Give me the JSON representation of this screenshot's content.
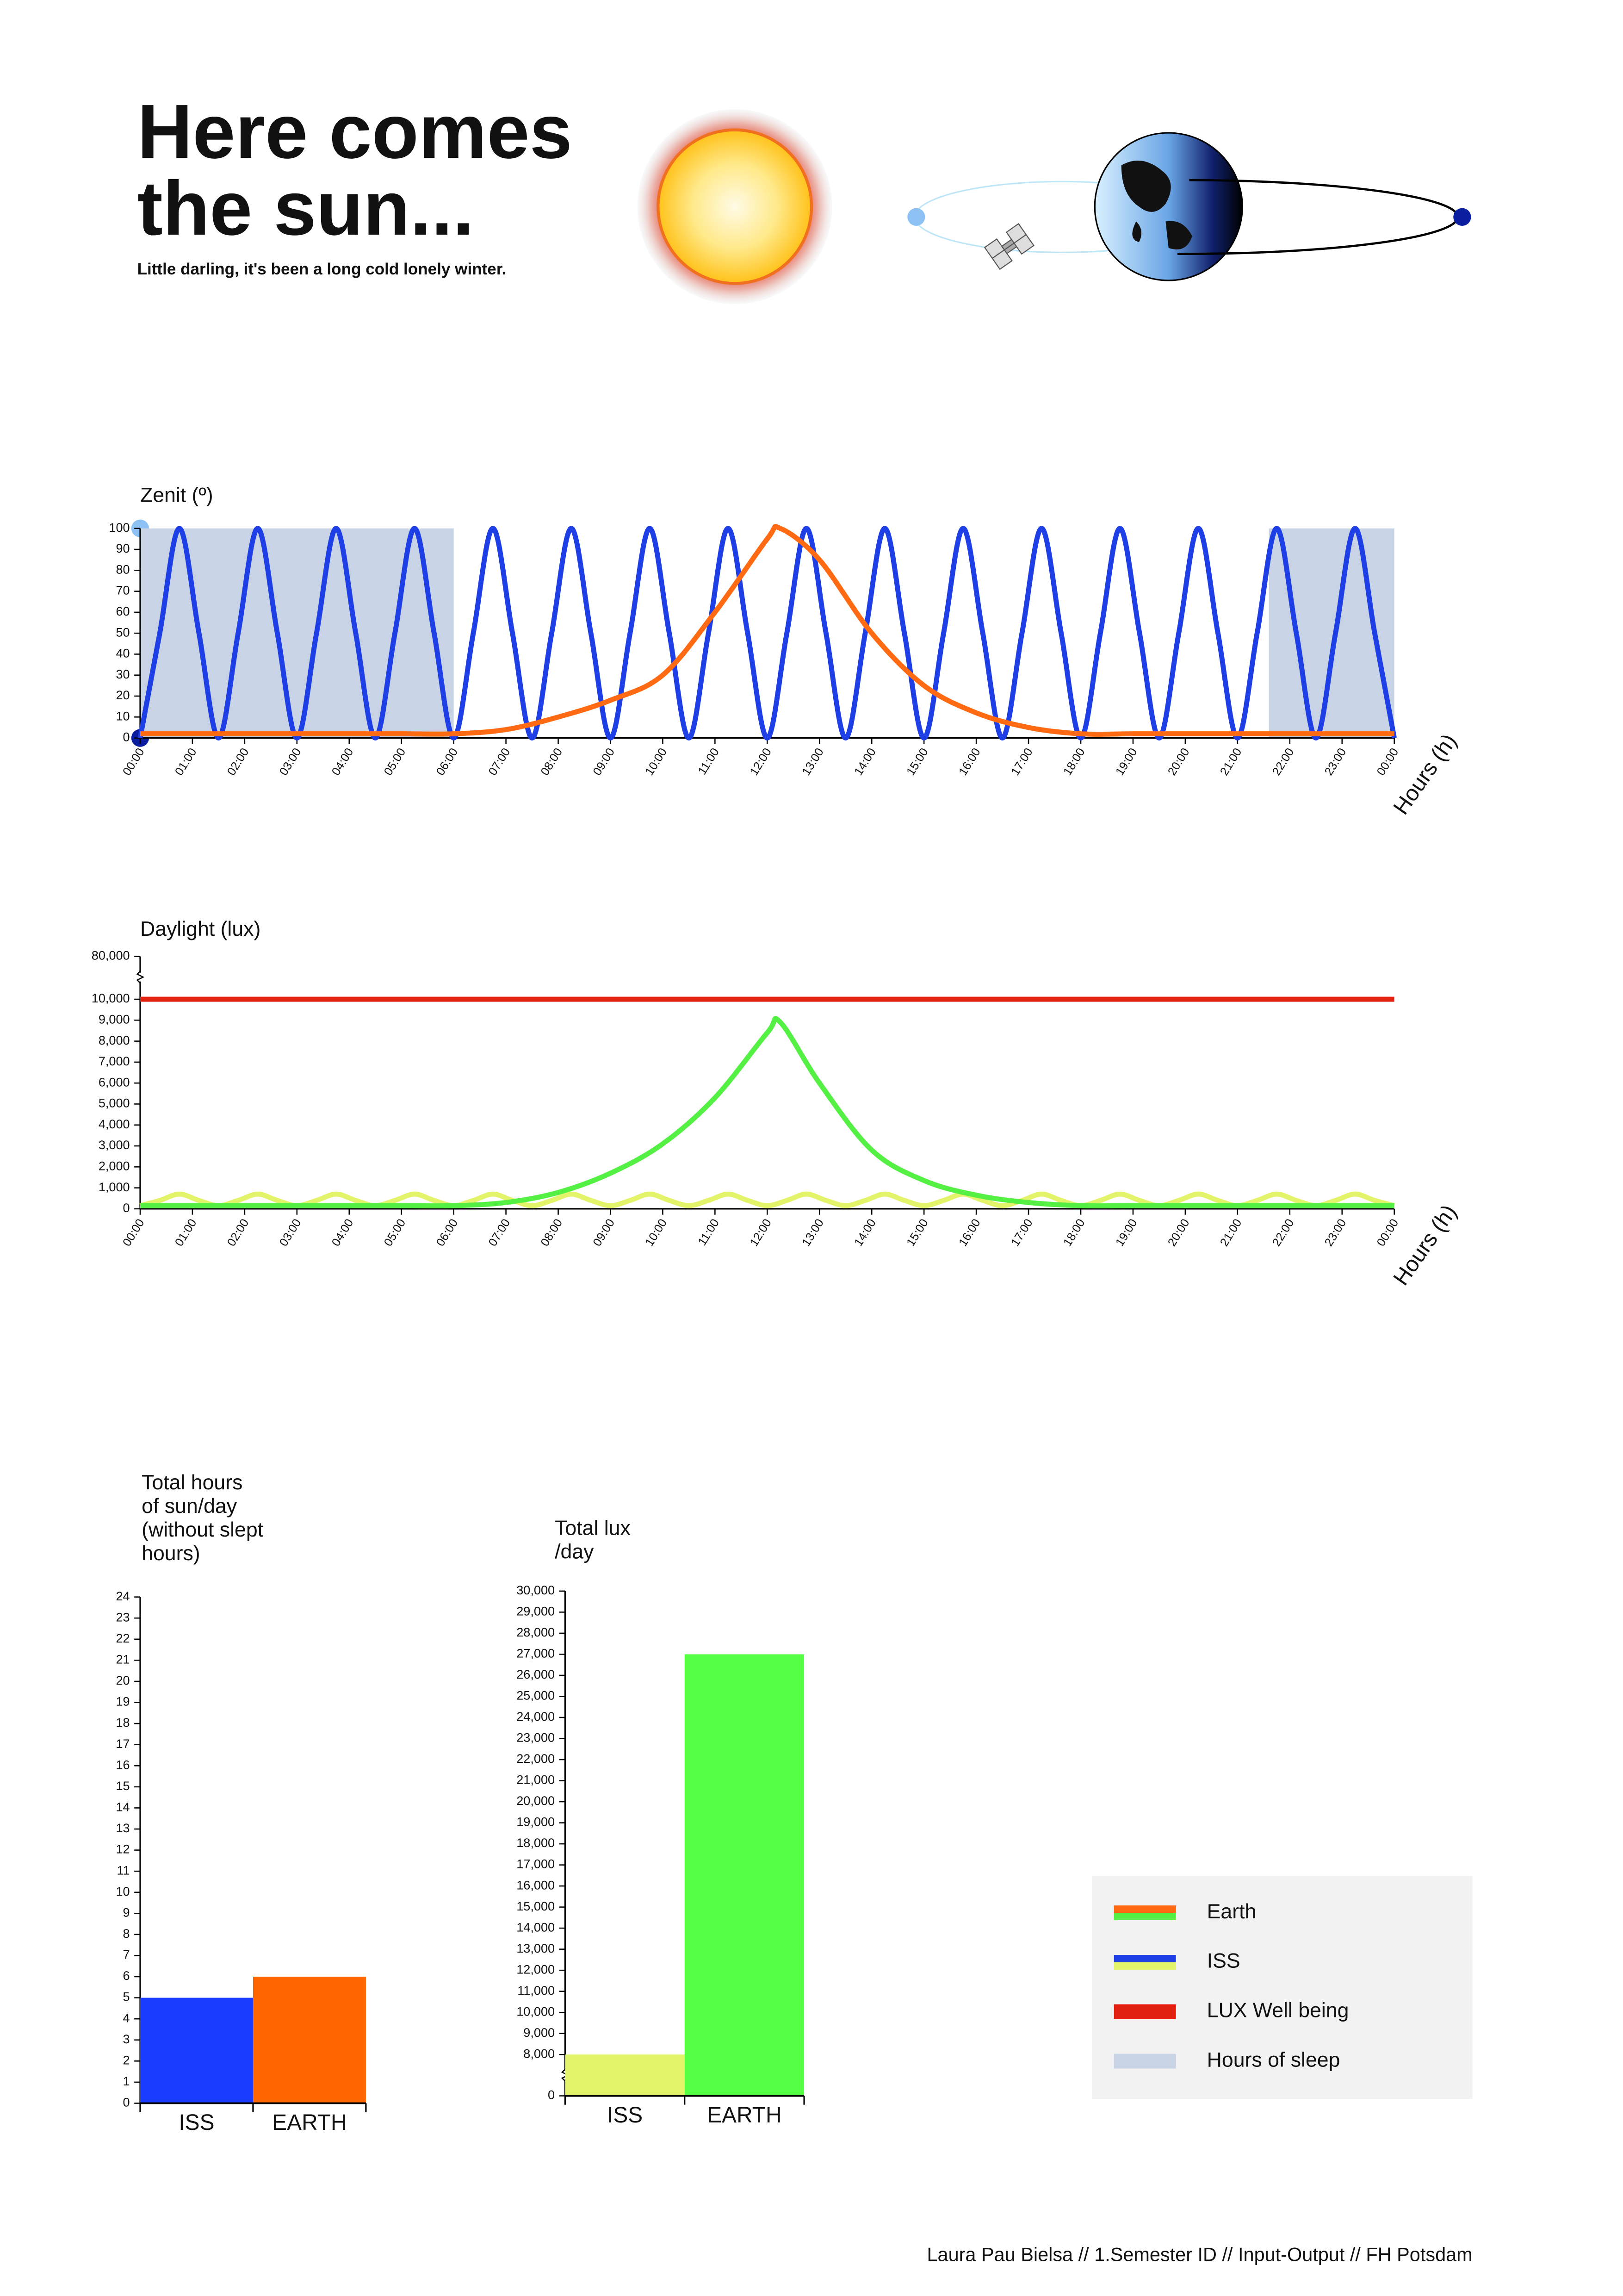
{
  "header": {
    "title": [
      "Here comes",
      "the sun..."
    ],
    "subtitle": "Little darling, it's been a long cold lonely winter."
  },
  "footer": "Laura Pau Bielsa // 1.Semester ID // Input-Output // FH Potsdam",
  "legend": [
    {
      "label": "Earth",
      "colors": [
        "#ff6a13",
        "#55f044"
      ]
    },
    {
      "label": "ISS",
      "colors": [
        "#1f3fe6",
        "#e4f46a"
      ]
    },
    {
      "label": "LUX Well being",
      "colors": [
        "#e2200f"
      ]
    },
    {
      "label": "Hours of sleep",
      "colors": [
        "#c8d4e6"
      ]
    }
  ],
  "chart_data": [
    {
      "type": "line",
      "title": "Zenit (º)",
      "x_label": "Hours (h)",
      "xlim": [
        0,
        24
      ],
      "xticks": [
        {
          "value": 0,
          "label": "00:00"
        },
        {
          "value": 1,
          "label": "01:00"
        },
        {
          "value": 2,
          "label": "02:00"
        },
        {
          "value": 3,
          "label": "03:00"
        },
        {
          "value": 4,
          "label": "04:00"
        },
        {
          "value": 5,
          "label": "05:00"
        },
        {
          "value": 6,
          "label": "06:00"
        },
        {
          "value": 7,
          "label": "07:00"
        },
        {
          "value": 8,
          "label": "08:00"
        },
        {
          "value": 9,
          "label": "09:00"
        },
        {
          "value": 10,
          "label": "10:00"
        },
        {
          "value": 11,
          "label": "11:00"
        },
        {
          "value": 12,
          "label": "12:00"
        },
        {
          "value": 13,
          "label": "13:00"
        },
        {
          "value": 14,
          "label": "14:00"
        },
        {
          "value": 15,
          "label": "15:00"
        },
        {
          "value": 16,
          "label": "16:00"
        },
        {
          "value": 17,
          "label": "17:00"
        },
        {
          "value": 18,
          "label": "18:00"
        },
        {
          "value": 19,
          "label": "19:00"
        },
        {
          "value": 20,
          "label": "20:00"
        },
        {
          "value": 21,
          "label": "21:00"
        },
        {
          "value": 22,
          "label": "22:00"
        },
        {
          "value": 23,
          "label": "23:00"
        },
        {
          "value": 24,
          "label": "00:00"
        }
      ],
      "ylim": [
        0,
        100
      ],
      "yticks": [
        0,
        10,
        20,
        30,
        40,
        50,
        60,
        70,
        80,
        90,
        100
      ],
      "sleep": [
        {
          "start": 0,
          "end": 6
        },
        {
          "start": 21.6,
          "end": 24
        }
      ],
      "sleep_color": "#c8d4e6",
      "series": [
        {
          "color": "#1f3fe6",
          "x": [
            0,
            0.375,
            0.75,
            1.125,
            1.5,
            1.875,
            2.25,
            2.625,
            3,
            3.375,
            3.75,
            4.125,
            4.5,
            4.875,
            5.25,
            5.625,
            6,
            6.375,
            6.75,
            7.125,
            7.5,
            7.875,
            8.25,
            8.625,
            9,
            9.375,
            9.75,
            10.125,
            10.5,
            10.875,
            11.25,
            11.625,
            12,
            12.375,
            12.75,
            13.125,
            13.5,
            13.875,
            14.25,
            14.625,
            15,
            15.375,
            15.75,
            16.125,
            16.5,
            16.875,
            17.25,
            17.625,
            18,
            18.375,
            18.75,
            19.125,
            19.5,
            19.875,
            20.25,
            20.625,
            21,
            21.375,
            21.75,
            22.125,
            22.5,
            22.875,
            23.25,
            23.625,
            24
          ],
          "values": [
            0,
            50,
            100,
            50,
            0,
            50,
            100,
            50,
            0,
            50,
            100,
            50,
            0,
            50,
            100,
            50,
            0,
            50,
            100,
            50,
            0,
            50,
            100,
            50,
            0,
            50,
            100,
            50,
            0,
            50,
            100,
            50,
            0,
            50,
            100,
            50,
            0,
            50,
            100,
            50,
            0,
            50,
            100,
            50,
            0,
            50,
            100,
            50,
            0,
            50,
            100,
            50,
            0,
            50,
            100,
            50,
            0,
            50,
            100,
            50,
            0,
            50,
            100,
            50,
            0
          ]
        },
        {
          "color": "#ff6a13",
          "x": [
            0,
            1,
            2,
            3,
            4,
            5,
            6,
            7,
            8,
            9,
            10,
            11,
            12,
            12.25,
            13,
            14,
            15,
            16,
            17,
            18,
            19,
            20,
            21,
            22,
            23,
            24
          ],
          "values": [
            2,
            2,
            2,
            2,
            2,
            2,
            2,
            4,
            10,
            18,
            30,
            60,
            95,
            100,
            85,
            50,
            25,
            12,
            5,
            2,
            2,
            2,
            2,
            2,
            2,
            2
          ]
        }
      ]
    },
    {
      "type": "line",
      "title": "Daylight (lux)",
      "x_label": "Hours (h)",
      "xlim": [
        0,
        24
      ],
      "xticks": [
        {
          "value": 0,
          "label": "00:00"
        },
        {
          "value": 1,
          "label": "01:00"
        },
        {
          "value": 2,
          "label": "02:00"
        },
        {
          "value": 3,
          "label": "03:00"
        },
        {
          "value": 4,
          "label": "04:00"
        },
        {
          "value": 5,
          "label": "05:00"
        },
        {
          "value": 6,
          "label": "06:00"
        },
        {
          "value": 7,
          "label": "07:00"
        },
        {
          "value": 8,
          "label": "08:00"
        },
        {
          "value": 9,
          "label": "09:00"
        },
        {
          "value": 10,
          "label": "10:00"
        },
        {
          "value": 11,
          "label": "11:00"
        },
        {
          "value": 12,
          "label": "12:00"
        },
        {
          "value": 13,
          "label": "13:00"
        },
        {
          "value": 14,
          "label": "14:00"
        },
        {
          "value": 15,
          "label": "15:00"
        },
        {
          "value": 16,
          "label": "16:00"
        },
        {
          "value": 17,
          "label": "17:00"
        },
        {
          "value": 18,
          "label": "18:00"
        },
        {
          "value": 19,
          "label": "19:00"
        },
        {
          "value": 20,
          "label": "20:00"
        },
        {
          "value": 21,
          "label": "21:00"
        },
        {
          "value": 22,
          "label": "22:00"
        },
        {
          "value": 23,
          "label": "23:00"
        },
        {
          "value": 24,
          "label": "00:00"
        }
      ],
      "ylim": [
        0,
        80000
      ],
      "axis_break": 10000,
      "yticks": [
        0,
        {
          "value": 1000,
          "label": "1,000"
        },
        {
          "value": 2000,
          "label": "2,000"
        },
        {
          "value": 3000,
          "label": "3,000"
        },
        {
          "value": 4000,
          "label": "4,000"
        },
        {
          "value": 5000,
          "label": "5,000"
        },
        {
          "value": 6000,
          "label": "6,000"
        },
        {
          "value": 7000,
          "label": "7,000"
        },
        {
          "value": 8000,
          "label": "8,000"
        },
        {
          "value": 9000,
          "label": "9,000"
        },
        {
          "value": 10000,
          "label": "10,000"
        },
        {
          "value": 80000,
          "label": "80,000"
        }
      ],
      "series": [
        {
          "color": "#e4f46a",
          "x": [
            0,
            0.375,
            0.75,
            1.125,
            1.5,
            1.875,
            2.25,
            2.625,
            3,
            3.375,
            3.75,
            4.125,
            4.5,
            4.875,
            5.25,
            5.625,
            6,
            6.375,
            6.75,
            7.125,
            7.5,
            7.875,
            8.25,
            8.625,
            9,
            9.375,
            9.75,
            10.125,
            10.5,
            10.875,
            11.25,
            11.625,
            12,
            12.375,
            12.75,
            13.125,
            13.5,
            13.875,
            14.25,
            14.625,
            15,
            15.375,
            15.75,
            16.125,
            16.5,
            16.875,
            17.25,
            17.625,
            18,
            18.375,
            18.75,
            19.125,
            19.5,
            19.875,
            20.25,
            20.625,
            21,
            21.375,
            21.75,
            22.125,
            22.5,
            22.875,
            23.25,
            23.625,
            24
          ],
          "values": [
            150,
            400,
            700,
            400,
            150,
            400,
            700,
            400,
            150,
            400,
            700,
            400,
            150,
            400,
            700,
            400,
            150,
            400,
            700,
            400,
            150,
            400,
            700,
            400,
            150,
            400,
            700,
            400,
            150,
            400,
            700,
            400,
            150,
            400,
            700,
            400,
            150,
            400,
            700,
            400,
            150,
            400,
            700,
            400,
            150,
            400,
            700,
            400,
            150,
            400,
            700,
            400,
            150,
            400,
            700,
            400,
            150,
            400,
            700,
            400,
            150,
            400,
            700,
            400,
            150
          ]
        },
        {
          "color": "#55f044",
          "x": [
            0,
            1,
            2,
            3,
            4,
            5,
            6,
            7,
            8,
            9,
            10,
            11,
            12,
            12.25,
            13,
            14,
            15,
            16,
            17,
            18,
            19,
            20,
            21,
            22,
            23,
            24
          ],
          "values": [
            150,
            150,
            150,
            150,
            150,
            150,
            150,
            300,
            780,
            1700,
            3100,
            5300,
            8400,
            8900,
            6000,
            2800,
            1350,
            650,
            300,
            150,
            150,
            150,
            150,
            150,
            150,
            150
          ]
        },
        {
          "color": "#e2200f",
          "x": [
            0,
            24
          ],
          "values": [
            10000,
            10000
          ]
        }
      ]
    },
    {
      "type": "bar",
      "title": [
        "Total hours",
        "of sun/day",
        "(without slept",
        "hours)"
      ],
      "categories": [
        "ISS",
        "EARTH"
      ],
      "values": [
        5,
        6
      ],
      "colors": [
        "#1a3cff",
        "#ff6600"
      ],
      "ylim": [
        0,
        24
      ],
      "yticks": [
        0,
        1,
        2,
        3,
        4,
        5,
        6,
        7,
        8,
        9,
        10,
        11,
        12,
        13,
        14,
        15,
        16,
        17,
        18,
        19,
        20,
        21,
        22,
        23,
        24
      ]
    },
    {
      "type": "bar",
      "title": [
        "Total lux",
        "/day"
      ],
      "categories": [
        "ISS",
        "EARTH"
      ],
      "values": [
        8000,
        27000
      ],
      "colors": [
        "#e4f46a",
        "#55ff44"
      ],
      "ylim": [
        0,
        30000
      ],
      "axis_break": 8000,
      "yticks": [
        0,
        {
          "value": 8000,
          "label": "8,000"
        },
        {
          "value": 9000,
          "label": "9,000"
        },
        {
          "value": 10000,
          "label": "10,000"
        },
        {
          "value": 11000,
          "label": "11,000"
        },
        {
          "value": 12000,
          "label": "12,000"
        },
        {
          "value": 13000,
          "label": "13,000"
        },
        {
          "value": 14000,
          "label": "14,000"
        },
        {
          "value": 15000,
          "label": "15,000"
        },
        {
          "value": 16000,
          "label": "16,000"
        },
        {
          "value": 17000,
          "label": "17,000"
        },
        {
          "value": 18000,
          "label": "18,000"
        },
        {
          "value": 19000,
          "label": "19,000"
        },
        {
          "value": 20000,
          "label": "20,000"
        },
        {
          "value": 21000,
          "label": "21,000"
        },
        {
          "value": 22000,
          "label": "22,000"
        },
        {
          "value": 23000,
          "label": "23,000"
        },
        {
          "value": 24000,
          "label": "24,000"
        },
        {
          "value": 25000,
          "label": "25,000"
        },
        {
          "value": 26000,
          "label": "26,000"
        },
        {
          "value": 27000,
          "label": "27,000"
        },
        {
          "value": 28000,
          "label": "28,000"
        },
        {
          "value": 29000,
          "label": "29,000"
        },
        {
          "value": 30000,
          "label": "30,000"
        }
      ]
    }
  ]
}
